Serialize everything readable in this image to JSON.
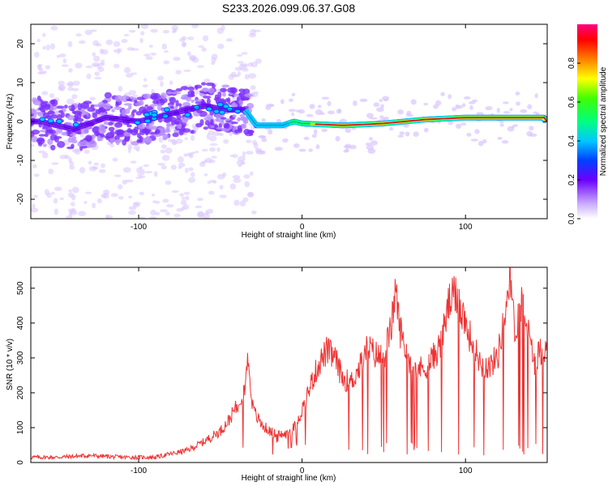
{
  "title": "S233.2026.099.06.37.G08",
  "chart_data": [
    {
      "type": "heatmap",
      "xlabel": "Height of straight line (km)",
      "ylabel": "Frequency (Hz)",
      "xlim": [
        -166,
        150
      ],
      "ylim": [
        -25,
        25
      ],
      "xticks": [
        -100,
        0,
        100
      ],
      "yticks": [
        -20,
        -10,
        0,
        10,
        20
      ],
      "xtick_labels": [
        "-100",
        "0",
        "100"
      ],
      "ytick_labels": [
        "-20",
        "-10",
        "0",
        "10",
        "20"
      ],
      "ridge": [
        {
          "x": -160,
          "y": 0
        },
        {
          "x": -140,
          "y": -2
        },
        {
          "x": -120,
          "y": 1
        },
        {
          "x": -100,
          "y": 0
        },
        {
          "x": -80,
          "y": 2
        },
        {
          "x": -60,
          "y": 4
        },
        {
          "x": -45,
          "y": 3
        },
        {
          "x": -35,
          "y": 3
        },
        {
          "x": -28,
          "y": -1
        },
        {
          "x": -20,
          "y": -1
        },
        {
          "x": -12,
          "y": -1
        },
        {
          "x": -5,
          "y": 0
        },
        {
          "x": 0,
          "y": -0.5
        },
        {
          "x": 25,
          "y": -1
        },
        {
          "x": 50,
          "y": -0.5
        },
        {
          "x": 75,
          "y": 0.5
        },
        {
          "x": 100,
          "y": 1
        },
        {
          "x": 125,
          "y": 1
        },
        {
          "x": 148,
          "y": 1
        }
      ],
      "colorbar": {
        "label": "Normalized spectral amplitude",
        "range": [
          0,
          1
        ],
        "ticks": [
          0.0,
          0.2,
          0.4,
          0.6,
          0.8
        ],
        "tick_labels": [
          "0.0",
          "0.2",
          "0.4",
          "0.6",
          "0.8"
        ]
      }
    },
    {
      "type": "line",
      "xlabel": "Height of straight line (km)",
      "ylabel": "SNR (10 * v/v)",
      "xlim": [
        -166,
        150
      ],
      "ylim": [
        0,
        560
      ],
      "xticks": [
        -100,
        0,
        100
      ],
      "yticks": [
        0,
        100,
        200,
        300,
        400,
        500
      ],
      "xtick_labels": [
        "-100",
        "0",
        "100"
      ],
      "ytick_labels": [
        "0",
        "100",
        "200",
        "300",
        "400",
        "500"
      ],
      "series": [
        {
          "name": "SNR",
          "color": "#ee3333",
          "x": [
            -166,
            -150,
            -130,
            -110,
            -90,
            -80,
            -70,
            -60,
            -50,
            -45,
            -40,
            -35,
            -33,
            -30,
            -25,
            -20,
            -15,
            -10,
            -5,
            0,
            5,
            10,
            15,
            20,
            25,
            30,
            35,
            40,
            45,
            50,
            55,
            57,
            60,
            65,
            70,
            75,
            80,
            85,
            90,
            95,
            100,
            105,
            110,
            115,
            120,
            125,
            127,
            130,
            135,
            140,
            143,
            145,
            150
          ],
          "values": [
            15,
            15,
            20,
            15,
            15,
            25,
            35,
            60,
            90,
            120,
            160,
            220,
            300,
            150,
            110,
            90,
            80,
            80,
            100,
            150,
            220,
            280,
            320,
            300,
            240,
            230,
            270,
            330,
            310,
            300,
            400,
            500,
            380,
            300,
            270,
            270,
            300,
            340,
            460,
            480,
            400,
            330,
            280,
            275,
            310,
            450,
            555,
            380,
            470,
            330,
            280,
            320,
            320
          ]
        }
      ]
    }
  ]
}
